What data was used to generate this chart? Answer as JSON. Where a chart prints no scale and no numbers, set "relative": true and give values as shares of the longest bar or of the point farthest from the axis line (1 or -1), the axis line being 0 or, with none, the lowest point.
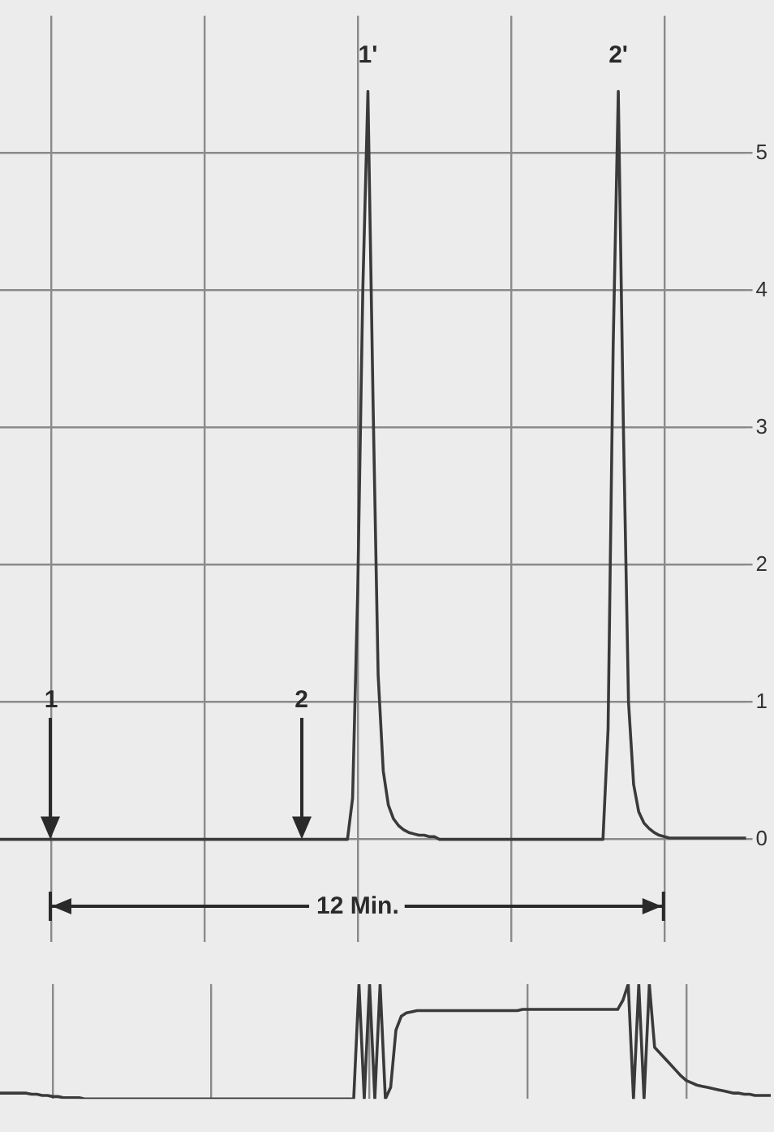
{
  "chart_data": [
    {
      "type": "line",
      "categories": [
        null,
        null,
        null,
        null,
        null,
        null,
        null,
        null,
        null,
        null,
        null,
        null,
        null,
        null,
        null,
        null,
        null,
        null,
        null,
        null,
        null,
        null,
        null,
        null,
        null,
        null,
        null,
        null,
        null,
        null,
        null,
        null,
        null,
        null,
        null,
        null,
        null,
        null,
        null,
        null,
        null,
        null,
        null,
        null,
        null,
        null,
        null,
        null,
        null,
        null,
        null,
        null,
        null,
        null,
        null,
        null,
        null,
        null,
        null,
        null,
        null,
        null,
        null,
        null,
        null,
        null,
        null,
        null,
        null,
        null,
        null,
        null,
        null,
        null,
        null,
        null,
        null,
        null,
        null,
        null,
        null,
        null,
        null,
        null,
        null,
        null,
        null,
        null,
        null,
        null,
        null,
        null,
        null,
        null,
        null,
        null,
        null,
        null,
        null,
        null,
        null,
        null,
        null,
        null,
        null,
        null,
        null,
        null,
        null,
        null,
        null,
        null,
        null,
        null,
        null,
        null,
        null,
        null,
        null,
        null,
        null,
        null,
        null,
        null,
        null,
        null,
        null,
        null,
        null,
        null,
        null,
        null,
        null,
        null,
        null,
        null,
        null,
        null,
        null,
        null,
        null,
        null,
        null,
        null,
        null,
        null,
        null
      ],
      "values": [
        0,
        0,
        0,
        0,
        0,
        0,
        0,
        0,
        0,
        0,
        0,
        0,
        0,
        0,
        0,
        0,
        0,
        0,
        0,
        0,
        0,
        0,
        0,
        0,
        0,
        0,
        0,
        0,
        0,
        0,
        0,
        0,
        0,
        0,
        0,
        0,
        0,
        0,
        0,
        0,
        0,
        0,
        0,
        0,
        0,
        0,
        0,
        0,
        0,
        0,
        0,
        0,
        0,
        0,
        0,
        0,
        0,
        0,
        0,
        0,
        0,
        0,
        0,
        0,
        0,
        0,
        0,
        0,
        0,
        0.3,
        1.8,
        4.0,
        5.45,
        3.2,
        1.2,
        0.5,
        0.25,
        0.15,
        0.1,
        0.07,
        0.05,
        0.04,
        0.03,
        0.03,
        0.02,
        0.02,
        0,
        0,
        0,
        0,
        0,
        0,
        0,
        0,
        0,
        0,
        0,
        0,
        0,
        0,
        0,
        0,
        0,
        0,
        0,
        0,
        0,
        0,
        0,
        0,
        0,
        0,
        0,
        0,
        0,
        0,
        0,
        0,
        0,
        0.8,
        3.6,
        5.45,
        3.0,
        1.0,
        0.4,
        0.2,
        0.12,
        0.08,
        0.05,
        0.03,
        0.02,
        0.01,
        0.01,
        0.01,
        0.01,
        0.01,
        0.01,
        0.01,
        0.01,
        0.01,
        0.01,
        0.01,
        0.01,
        0.01,
        0.01,
        0.01,
        0.01
      ],
      "color": "#3a3a3a",
      "ylim": [
        -0.75,
        6
      ],
      "yticks": [
        0,
        1,
        2,
        3,
        4,
        5
      ],
      "grid": true,
      "tick_labels": "y",
      "marker": "none",
      "annotations": [
        "1'",
        "2'",
        "1",
        "2",
        "12 Min."
      ]
    },
    {
      "type": "line",
      "relative": true,
      "categories": [
        null,
        null,
        null,
        null,
        null,
        null,
        null,
        null,
        null,
        null,
        null,
        null,
        null,
        null,
        null,
        null,
        null,
        null,
        null,
        null,
        null,
        null,
        null,
        null,
        null,
        null,
        null,
        null,
        null,
        null,
        null,
        null,
        null,
        null,
        null,
        null,
        null,
        null,
        null,
        null,
        null,
        null,
        null,
        null,
        null,
        null,
        null,
        null,
        null,
        null,
        null,
        null,
        null,
        null,
        null,
        null,
        null,
        null,
        null,
        null,
        null,
        null,
        null,
        null,
        null,
        null,
        null,
        null,
        null,
        null,
        null,
        null,
        null,
        null,
        null,
        null,
        null,
        null,
        null,
        null,
        null,
        null,
        null,
        null,
        null,
        null,
        null,
        null,
        null,
        null,
        null,
        null,
        null,
        null,
        null,
        null,
        null,
        null,
        null,
        null,
        null,
        null,
        null,
        null,
        null,
        null,
        null,
        null,
        null,
        null,
        null,
        null,
        null,
        null,
        null,
        null,
        null,
        null,
        null,
        null,
        null,
        null,
        null,
        null,
        null,
        null,
        null,
        null,
        null,
        null,
        null,
        null,
        null,
        null,
        null,
        null,
        null,
        null,
        null,
        null,
        null,
        null,
        null,
        null,
        null,
        null,
        null
      ],
      "values": [
        0.05,
        0.05,
        0.05,
        0.05,
        0.05,
        0.05,
        0.04,
        0.04,
        0.03,
        0.03,
        0.02,
        0.02,
        0.01,
        0.01,
        0.01,
        0.01,
        0,
        0,
        0,
        0,
        0,
        0,
        0,
        0,
        0,
        0,
        0,
        0,
        0,
        0,
        0,
        0,
        0,
        0,
        0,
        0,
        0,
        0,
        0,
        0,
        0,
        0,
        0,
        0,
        0,
        0,
        0,
        0,
        0,
        0,
        0,
        0,
        0,
        0,
        0,
        0,
        0,
        0,
        0,
        0,
        0,
        0,
        0,
        0,
        0,
        0,
        0,
        0,
        1.0,
        0,
        1.0,
        0,
        1.0,
        0,
        0.1,
        0.6,
        0.72,
        0.75,
        0.76,
        0.77,
        0.77,
        0.77,
        0.77,
        0.77,
        0.77,
        0.77,
        0.77,
        0.77,
        0.77,
        0.77,
        0.77,
        0.77,
        0.77,
        0.77,
        0.77,
        0.77,
        0.77,
        0.77,
        0.77,
        0.78,
        0.78,
        0.78,
        0.78,
        0.78,
        0.78,
        0.78,
        0.78,
        0.78,
        0.78,
        0.78,
        0.78,
        0.78,
        0.78,
        0.78,
        0.78,
        0.78,
        0.78,
        0.78,
        0.86,
        1.0,
        0,
        1.0,
        0,
        1.0,
        0.45,
        0.4,
        0.35,
        0.3,
        0.25,
        0.2,
        0.16,
        0.14,
        0.12,
        0.11,
        0.1,
        0.09,
        0.08,
        0.07,
        0.06,
        0.05,
        0.05,
        0.04,
        0.04,
        0.03,
        0.03,
        0.03,
        0.03
      ],
      "color": "#3a3a3a",
      "grid": "x",
      "marker": "none"
    }
  ]
}
